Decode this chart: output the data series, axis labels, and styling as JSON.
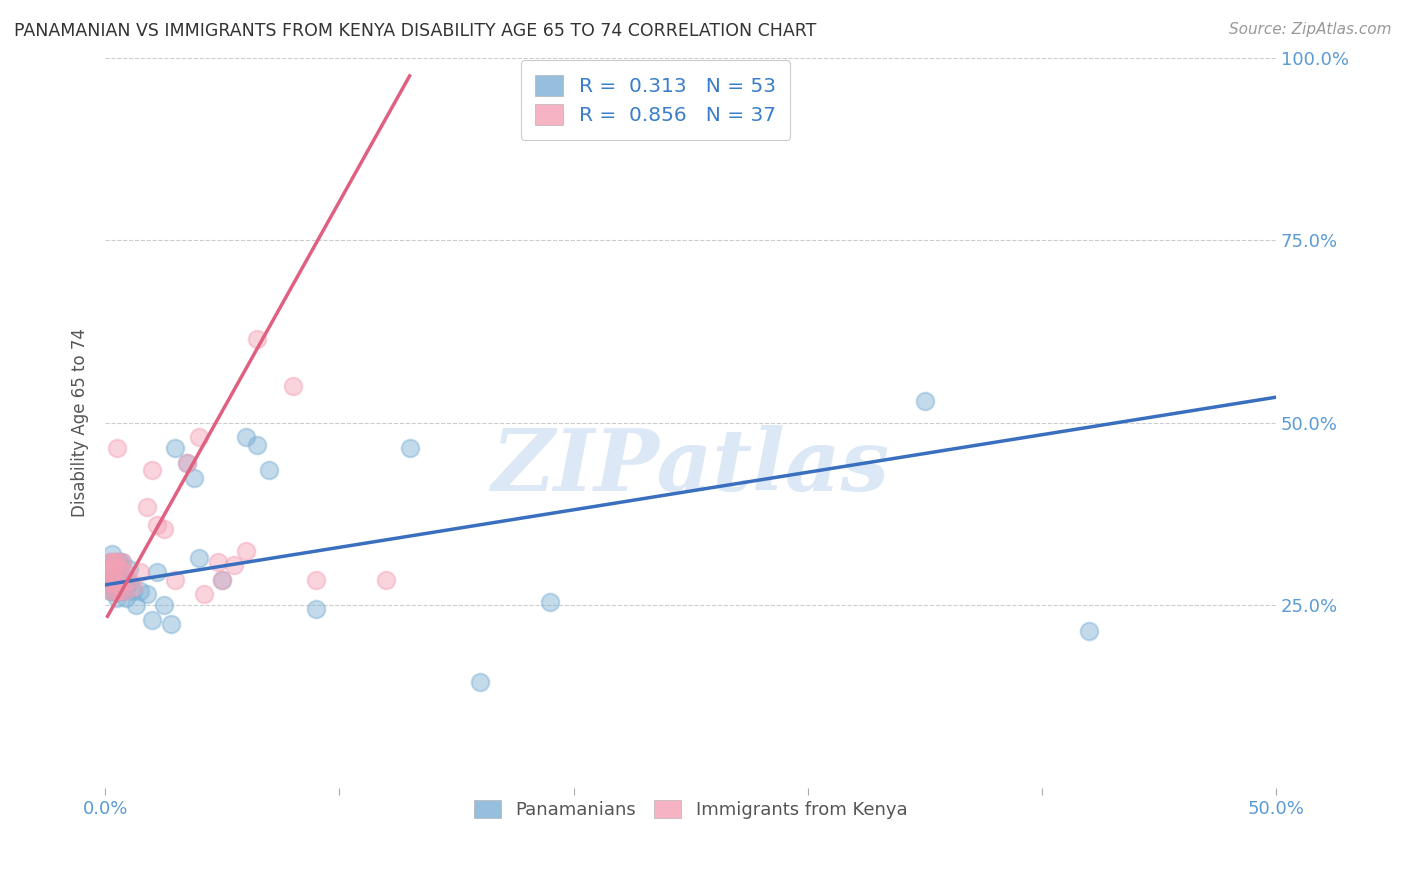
{
  "title": "PANAMANIAN VS IMMIGRANTS FROM KENYA DISABILITY AGE 65 TO 74 CORRELATION CHART",
  "source": "Source: ZipAtlas.com",
  "ylabel": "Disability Age 65 to 74",
  "xlim": [
    0.0,
    0.5
  ],
  "ylim": [
    0.0,
    1.0
  ],
  "xtick_positions": [
    0.0,
    0.1,
    0.2,
    0.3,
    0.4,
    0.5
  ],
  "xtick_labels": [
    "0.0%",
    "",
    "",
    "",
    "",
    "50.0%"
  ],
  "ytick_positions": [
    0.0,
    0.25,
    0.5,
    0.75,
    1.0
  ],
  "ytick_labels": [
    "",
    "25.0%",
    "50.0%",
    "75.0%",
    "100.0%"
  ],
  "legend1_label": "R =  0.313   N = 53",
  "legend2_label": "R =  0.856   N = 37",
  "series1_color": "#7bafd4",
  "series2_color": "#f4a0b5",
  "trendline1_color": "#3a6fbf",
  "trendline2_color": "#e06080",
  "watermark": "ZIPatlas",
  "watermark_color": "#dce8f5",
  "pan_scatter_x": [
    0.001,
    0.001,
    0.001,
    0.002,
    0.002,
    0.002,
    0.002,
    0.003,
    0.003,
    0.003,
    0.003,
    0.004,
    0.004,
    0.004,
    0.004,
    0.005,
    0.005,
    0.005,
    0.005,
    0.006,
    0.006,
    0.006,
    0.007,
    0.007,
    0.007,
    0.008,
    0.008,
    0.009,
    0.009,
    0.01,
    0.01,
    0.012,
    0.013,
    0.015,
    0.018,
    0.02,
    0.022,
    0.025,
    0.028,
    0.03,
    0.035,
    0.038,
    0.04,
    0.05,
    0.06,
    0.065,
    0.07,
    0.09,
    0.13,
    0.16,
    0.19,
    0.35,
    0.42
  ],
  "pan_scatter_y": [
    0.3,
    0.29,
    0.28,
    0.31,
    0.3,
    0.285,
    0.27,
    0.32,
    0.3,
    0.28,
    0.27,
    0.31,
    0.295,
    0.28,
    0.27,
    0.31,
    0.29,
    0.275,
    0.26,
    0.31,
    0.295,
    0.27,
    0.31,
    0.29,
    0.27,
    0.28,
    0.27,
    0.275,
    0.26,
    0.3,
    0.28,
    0.27,
    0.25,
    0.27,
    0.265,
    0.23,
    0.295,
    0.25,
    0.225,
    0.465,
    0.445,
    0.425,
    0.315,
    0.285,
    0.48,
    0.47,
    0.435,
    0.245,
    0.465,
    0.145,
    0.255,
    0.53,
    0.215
  ],
  "ken_scatter_x": [
    0.001,
    0.001,
    0.002,
    0.002,
    0.002,
    0.003,
    0.003,
    0.003,
    0.004,
    0.004,
    0.005,
    0.005,
    0.005,
    0.006,
    0.006,
    0.007,
    0.008,
    0.008,
    0.01,
    0.012,
    0.015,
    0.018,
    0.02,
    0.022,
    0.025,
    0.03,
    0.035,
    0.04,
    0.042,
    0.048,
    0.05,
    0.055,
    0.06,
    0.065,
    0.08,
    0.09,
    0.12
  ],
  "ken_scatter_y": [
    0.3,
    0.285,
    0.31,
    0.295,
    0.28,
    0.31,
    0.295,
    0.27,
    0.31,
    0.27,
    0.465,
    0.31,
    0.28,
    0.3,
    0.27,
    0.31,
    0.295,
    0.27,
    0.285,
    0.275,
    0.295,
    0.385,
    0.435,
    0.36,
    0.355,
    0.285,
    0.445,
    0.48,
    0.265,
    0.31,
    0.285,
    0.305,
    0.325,
    0.615,
    0.55,
    0.285,
    0.285
  ],
  "trendline1_x": [
    0.0,
    0.5
  ],
  "trendline1_y": [
    0.278,
    0.535
  ],
  "trendline2_x": [
    0.001,
    0.13
  ],
  "trendline2_y": [
    0.235,
    0.975
  ]
}
